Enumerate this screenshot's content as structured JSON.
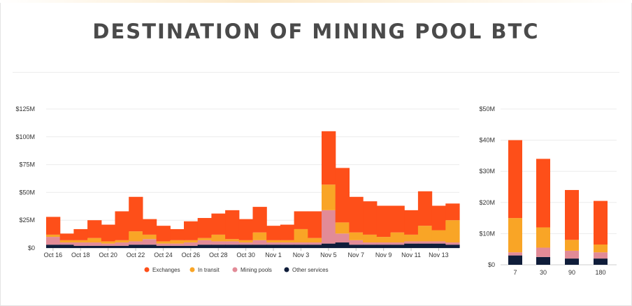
{
  "title": "DESTINATION OF MINING POOL BTC",
  "colors": {
    "exchanges": "#fe4f19",
    "in_transit": "#f9a526",
    "mining_pools": "#e28b97",
    "other_services": "#0f1d3a"
  },
  "legend": [
    "Exchanges",
    "In transit",
    "Mining pools",
    "Other services"
  ],
  "chart_data": [
    {
      "type": "bar",
      "stacked": true,
      "grid": true,
      "legend_position": "bottom",
      "categories": [
        "Oct 16",
        "Oct 17",
        "Oct 18",
        "Oct 19",
        "Oct 20",
        "Oct 21",
        "Oct 22",
        "Oct 23",
        "Oct 24",
        "Oct 25",
        "Oct 26",
        "Oct 27",
        "Oct 28",
        "Oct 29",
        "Oct 30",
        "Oct 31",
        "Nov 1",
        "Nov 2",
        "Nov 3",
        "Nov 4",
        "Nov 5",
        "Nov 6",
        "Nov 7",
        "Nov 8",
        "Nov 9",
        "Nov 10",
        "Nov 11",
        "Nov 12",
        "Nov 13",
        "Nov 14"
      ],
      "x_tick_labels": [
        "Oct 16",
        "Oct 18",
        "Oct 20",
        "Oct 22",
        "Oct 24",
        "Oct 26",
        "Oct 28",
        "Oct 30",
        "Nov 1",
        "Nov 3",
        "Nov 5",
        "Nov 7",
        "Nov 9",
        "Nov 11",
        "Nov 13"
      ],
      "y_tick_labels": [
        "$0",
        "$25M",
        "$50M",
        "$75M",
        "$100M",
        "$125M"
      ],
      "ylim": [
        0,
        125
      ],
      "unit": "$M",
      "series": [
        {
          "name": "Other services",
          "values": [
            3,
            3,
            2,
            2,
            2,
            2,
            3,
            3,
            2,
            2,
            2,
            3,
            3,
            3,
            3,
            3,
            3,
            3,
            3,
            3,
            4,
            5,
            3,
            3,
            3,
            3,
            4,
            4,
            4,
            3
          ]
        },
        {
          "name": "Mining pools",
          "values": [
            7,
            2,
            3,
            3,
            2,
            3,
            3,
            5,
            2,
            2,
            3,
            4,
            3,
            3,
            2,
            4,
            2,
            2,
            2,
            2,
            30,
            8,
            4,
            2,
            2,
            2,
            2,
            2,
            2,
            2
          ]
        },
        {
          "name": "In transit",
          "values": [
            2,
            2,
            2,
            4,
            2,
            2,
            9,
            4,
            2,
            3,
            2,
            2,
            6,
            2,
            2,
            7,
            2,
            2,
            12,
            4,
            23,
            10,
            7,
            7,
            5,
            9,
            6,
            14,
            10,
            20
          ]
        },
        {
          "name": "Exchanges",
          "values": [
            16,
            6,
            10,
            16,
            15,
            26,
            31,
            14,
            14,
            10,
            17,
            18,
            19,
            26,
            19,
            23,
            13,
            14,
            16,
            24,
            48,
            49,
            32,
            30,
            28,
            24,
            22,
            31,
            22,
            15
          ]
        }
      ]
    },
    {
      "type": "bar",
      "stacked": true,
      "grid": true,
      "categories": [
        "7",
        "30",
        "90",
        "180"
      ],
      "y_tick_labels": [
        "$0",
        "$10M",
        "$20M",
        "$30M",
        "$40M",
        "$50M"
      ],
      "ylim": [
        0,
        50
      ],
      "unit": "$M",
      "series": [
        {
          "name": "Other services",
          "values": [
            3,
            2.5,
            2,
            2
          ]
        },
        {
          "name": "Mining pools",
          "values": [
            1,
            3,
            2.5,
            2
          ]
        },
        {
          "name": "In transit",
          "values": [
            11,
            6.5,
            3.5,
            2.5
          ]
        },
        {
          "name": "Exchanges",
          "values": [
            25,
            22,
            16,
            14
          ]
        }
      ]
    }
  ]
}
